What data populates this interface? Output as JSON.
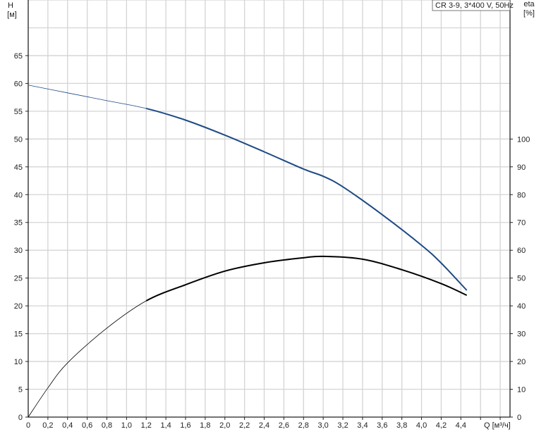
{
  "chart_data": {
    "type": "line",
    "title": "CR 3-9, 3*400 V, 50Hz",
    "xlabel": "Q [м³/ч]",
    "ylabel": "H",
    "ylabel_unit": "[м]",
    "y2label": "eta",
    "y2label_unit": "[%]",
    "xlim": [
      0,
      4.9
    ],
    "ylim": [
      0,
      75
    ],
    "y2lim": [
      0,
      150
    ],
    "x_ticks": [
      "0",
      "0,2",
      "0,4",
      "0,6",
      "0,8",
      "1,0",
      "1,2",
      "1,4",
      "1,6",
      "1,8",
      "2,0",
      "2,2",
      "2,4",
      "2,6",
      "2,8",
      "3,0",
      "3,2",
      "3,4",
      "3,6",
      "3,8",
      "4,0",
      "4,2",
      "4,4"
    ],
    "y_ticks": [
      "0",
      "5",
      "10",
      "15",
      "20",
      "25",
      "30",
      "35",
      "40",
      "45",
      "50",
      "55",
      "60",
      "65"
    ],
    "y2_ticks": [
      "0",
      "10",
      "20",
      "30",
      "40",
      "50",
      "60",
      "70",
      "80",
      "90",
      "100"
    ],
    "grid": true,
    "legend": "top-right",
    "series": [
      {
        "name": "H",
        "axis": "left",
        "color": "#1d4a86",
        "x": [
          0,
          0.4,
          0.8,
          1.2,
          1.6,
          2.0,
          2.4,
          2.8,
          3.0,
          3.2,
          3.6,
          4.0,
          4.2,
          4.46
        ],
        "y": [
          59.7,
          58.3,
          56.9,
          55.5,
          53.4,
          50.7,
          47.7,
          44.6,
          43.3,
          41.4,
          36.4,
          30.9,
          27.7,
          22.8
        ]
      },
      {
        "name": "eta",
        "axis": "right",
        "color": "#000000",
        "x": [
          0,
          0.2,
          0.4,
          0.8,
          1.2,
          1.6,
          2.0,
          2.4,
          2.8,
          3.0,
          3.4,
          3.8,
          4.2,
          4.46
        ],
        "y": [
          0,
          10.5,
          19.5,
          32,
          41.8,
          47.6,
          52.5,
          55.5,
          57.3,
          57.8,
          56.8,
          53,
          48,
          43.8
        ]
      }
    ]
  }
}
